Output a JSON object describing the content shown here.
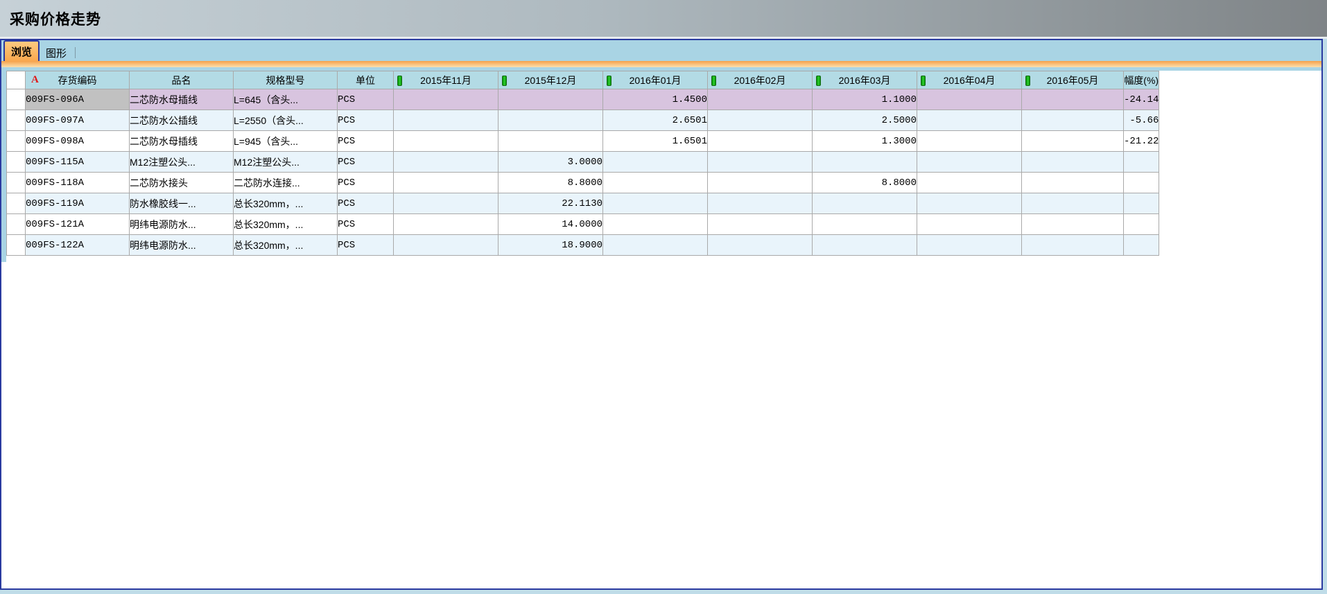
{
  "titlebar": {
    "title": "采购价格走势"
  },
  "tabs": {
    "browse": {
      "label": "浏览",
      "active": true
    },
    "graph": {
      "label": "图形",
      "active": false
    }
  },
  "grid": {
    "sort_indicator": "A",
    "columns": [
      {
        "label": "存货编码",
        "icon": "sort-a-icon"
      },
      {
        "label": "品名"
      },
      {
        "label": "规格型号"
      },
      {
        "label": "单位"
      },
      {
        "label": "2015年11月",
        "icon": "green-bar-icon"
      },
      {
        "label": "2015年12月",
        "icon": "green-bar-icon"
      },
      {
        "label": "2016年01月",
        "icon": "green-bar-icon"
      },
      {
        "label": "2016年02月",
        "icon": "green-bar-icon"
      },
      {
        "label": "2016年03月",
        "icon": "green-bar-icon"
      },
      {
        "label": "2016年04月",
        "icon": "green-bar-icon"
      },
      {
        "label": "2016年05月",
        "icon": "green-bar-icon"
      },
      {
        "label": "幅度(%)"
      }
    ],
    "rows": [
      {
        "code": "009FS-096A",
        "name": "二芯防水母插线",
        "spec": "L=645（含头...",
        "unit": "PCS",
        "months": [
          "",
          "",
          "1.4500",
          "",
          "1.1000",
          "",
          ""
        ],
        "change": "-24.14",
        "selected": true
      },
      {
        "code": "009FS-097A",
        "name": "二芯防水公插线",
        "spec": "L=2550（含头...",
        "unit": "PCS",
        "months": [
          "",
          "",
          "2.6501",
          "",
          "2.5000",
          "",
          ""
        ],
        "change": "-5.66"
      },
      {
        "code": "009FS-098A",
        "name": "二芯防水母插线",
        "spec": "L=945（含头...",
        "unit": "PCS",
        "months": [
          "",
          "",
          "1.6501",
          "",
          "1.3000",
          "",
          ""
        ],
        "change": "-21.22"
      },
      {
        "code": "009FS-115A",
        "name": "M12注塑公头...",
        "spec": "M12注塑公头...",
        "unit": "PCS",
        "months": [
          "",
          "3.0000",
          "",
          "",
          "",
          "",
          ""
        ],
        "change": ""
      },
      {
        "code": "009FS-118A",
        "name": "二芯防水接头",
        "spec": "二芯防水连接...",
        "unit": "PCS",
        "months": [
          "",
          "8.8000",
          "",
          "",
          "8.8000",
          "",
          ""
        ],
        "change": ""
      },
      {
        "code": "009FS-119A",
        "name": "防水橡胶线一...",
        "spec": "总长320mm，...",
        "unit": "PCS",
        "months": [
          "",
          "22.1130",
          "",
          "",
          "",
          "",
          ""
        ],
        "change": ""
      },
      {
        "code": "009FS-121A",
        "name": "明纬电源防水...",
        "spec": "总长320mm，...",
        "unit": "PCS",
        "months": [
          "",
          "14.0000",
          "",
          "",
          "",
          "",
          ""
        ],
        "change": ""
      },
      {
        "code": "009FS-122A",
        "name": "明纬电源防水...",
        "spec": "总长320mm，...",
        "unit": "PCS",
        "months": [
          "",
          "18.9000",
          "",
          "",
          "",
          "",
          ""
        ],
        "change": ""
      }
    ]
  },
  "colors": {
    "accent_tab_orange": "#F9A84E",
    "header_blue": "#B3DBE5",
    "selected_row_pink": "#D8C4DF",
    "selected_cell_grey": "#C1C1C1",
    "alt_row_blue": "#E9F4FB",
    "negative_red": "#F20000",
    "frame_navy": "#2A3AA0",
    "green_icon": "#00B400",
    "sort_a_red": "#E01818"
  }
}
